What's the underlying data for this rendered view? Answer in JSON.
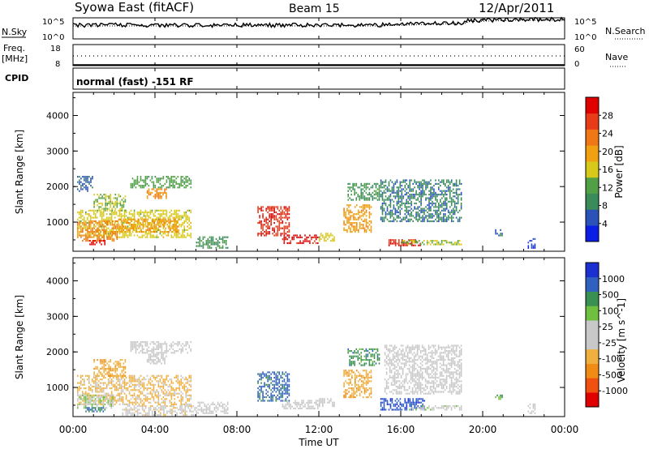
{
  "header": {
    "station": "Syowa East (fitACF)",
    "beam": "Beam 15",
    "date": "12/Apr/2011"
  },
  "sky_panel": {
    "left_label": "N.Sky",
    "right_label": "N.Search",
    "left_ticks": [
      "10^5",
      "10^0"
    ],
    "right_ticks": [
      "10^5",
      "10^0"
    ]
  },
  "freq_panel": {
    "left_label_line1": "Freq.",
    "left_label_line2": "[MHz]",
    "right_label": "Nave",
    "left_ticks": [
      "18",
      "8"
    ],
    "right_ticks": [
      "60",
      "0"
    ]
  },
  "cpid_panel": {
    "label": "CPID",
    "program": "normal (fast) -151 RF"
  },
  "time_axis": {
    "label": "Time UT",
    "ticks": [
      "00:00",
      "04:00",
      "08:00",
      "12:00",
      "16:00",
      "20:00",
      "00:00"
    ]
  },
  "colors": {
    "power": [
      "#0a1ee6",
      "#2a52b8",
      "#3a8a5a",
      "#52a046",
      "#d8c81a",
      "#f0a010",
      "#f07814",
      "#e83c18",
      "#e00000"
    ],
    "velocity": [
      "#e00000",
      "#f05010",
      "#f08c14",
      "#f0b040",
      "#c8c8c8",
      "#c8c8c8",
      "#70c040",
      "#3a9050",
      "#3060c0",
      "#1a30d0"
    ]
  },
  "chart_data": [
    {
      "type": "heatmap",
      "quantity": "power",
      "xlabel": "Time UT",
      "ylabel": "Slant Range [km]",
      "y_ticks": [
        "1000",
        "2000",
        "3000",
        "4000"
      ],
      "ylim": [
        180,
        4650
      ],
      "xlim_hours": [
        0,
        24
      ],
      "colorbar": {
        "label": "Power [dB]",
        "ticks": [
          "4",
          "8",
          "12",
          "16",
          "20",
          "24",
          "28"
        ],
        "range": [
          0,
          32
        ]
      },
      "regions": [
        {
          "t": [
            0.2,
            5.8
          ],
          "r": [
            550,
            1350
          ],
          "v": 16
        },
        {
          "t": [
            0.2,
            2.2
          ],
          "r": [
            450,
            1050
          ],
          "v": 22
        },
        {
          "t": [
            0.8,
            1.6
          ],
          "r": [
            350,
            500
          ],
          "v": 30
        },
        {
          "t": [
            1.0,
            2.6
          ],
          "r": [
            1300,
            1800
          ],
          "v": 14
        },
        {
          "t": [
            2.8,
            5.8
          ],
          "r": [
            1950,
            2300
          ],
          "v": 12
        },
        {
          "t": [
            3.6,
            4.6
          ],
          "r": [
            1650,
            1950
          ],
          "v": 22
        },
        {
          "t": [
            0.2,
            1.0
          ],
          "r": [
            1850,
            2300
          ],
          "v": 6
        },
        {
          "t": [
            2.2,
            5.2
          ],
          "r": [
            700,
            1100
          ],
          "v": 20
        },
        {
          "t": [
            6.0,
            7.6
          ],
          "r": [
            250,
            600
          ],
          "v": 10
        },
        {
          "t": [
            9.0,
            10.6
          ],
          "r": [
            600,
            1450
          ],
          "v": 28
        },
        {
          "t": [
            10.2,
            12.0
          ],
          "r": [
            380,
            650
          ],
          "v": 30
        },
        {
          "t": [
            12.0,
            12.8
          ],
          "r": [
            450,
            700
          ],
          "v": 16
        },
        {
          "t": [
            13.2,
            14.6
          ],
          "r": [
            700,
            1500
          ],
          "v": 20
        },
        {
          "t": [
            13.4,
            15.0
          ],
          "r": [
            1600,
            2100
          ],
          "v": 10
        },
        {
          "t": [
            15.4,
            17.0
          ],
          "r": [
            320,
            520
          ],
          "v": 28
        },
        {
          "t": [
            15.0,
            19.0
          ],
          "r": [
            1000,
            2200
          ],
          "v": 8
        },
        {
          "t": [
            16.0,
            19.0
          ],
          "r": [
            350,
            500
          ],
          "v": 14
        },
        {
          "t": [
            20.6,
            21.0
          ],
          "r": [
            600,
            800
          ],
          "v": 6
        },
        {
          "t": [
            22.2,
            22.6
          ],
          "r": [
            250,
            550
          ],
          "v": 4
        }
      ]
    },
    {
      "type": "heatmap",
      "quantity": "velocity",
      "xlabel": "Time UT",
      "ylabel": "Slant Range [km]",
      "y_ticks": [
        "1000",
        "2000",
        "3000",
        "4000"
      ],
      "ylim": [
        180,
        4650
      ],
      "xlim_hours": [
        0,
        24
      ],
      "colorbar": {
        "label": "Velocity [m s^-1]",
        "ticks": [
          "-1000",
          "-500",
          "-100",
          "-25",
          "25",
          "100",
          "500",
          "1000"
        ],
        "range": [
          -1200,
          1200
        ]
      },
      "regions": [
        {
          "t": [
            0.2,
            5.8
          ],
          "r": [
            500,
            1350
          ],
          "v": -300
        },
        {
          "t": [
            0.2,
            2.0
          ],
          "r": [
            400,
            800
          ],
          "v": 200
        },
        {
          "t": [
            0.6,
            1.6
          ],
          "r": [
            300,
            450
          ],
          "v": 700
        },
        {
          "t": [
            2.8,
            5.8
          ],
          "r": [
            1950,
            2300
          ],
          "v": 0
        },
        {
          "t": [
            3.6,
            4.6
          ],
          "r": [
            1650,
            1950
          ],
          "v": -60
        },
        {
          "t": [
            1.0,
            2.6
          ],
          "r": [
            1300,
            1800
          ],
          "v": -400
        },
        {
          "t": [
            2.4,
            6.0
          ],
          "r": [
            200,
            500
          ],
          "v": -150
        },
        {
          "t": [
            6.0,
            7.6
          ],
          "r": [
            250,
            600
          ],
          "v": -80
        },
        {
          "t": [
            9.0,
            10.6
          ],
          "r": [
            600,
            1450
          ],
          "v": 800
        },
        {
          "t": [
            10.2,
            12.0
          ],
          "r": [
            380,
            650
          ],
          "v": 0
        },
        {
          "t": [
            12.0,
            12.8
          ],
          "r": [
            450,
            700
          ],
          "v": -60
        },
        {
          "t": [
            13.2,
            14.6
          ],
          "r": [
            700,
            1500
          ],
          "v": -400
        },
        {
          "t": [
            13.4,
            15.0
          ],
          "r": [
            1600,
            2100
          ],
          "v": 600
        },
        {
          "t": [
            15.0,
            17.2
          ],
          "r": [
            350,
            700
          ],
          "v": 900
        },
        {
          "t": [
            15.2,
            19.0
          ],
          "r": [
            800,
            2200
          ],
          "v": 50
        },
        {
          "t": [
            16.4,
            19.0
          ],
          "r": [
            350,
            500
          ],
          "v": 150
        },
        {
          "t": [
            20.6,
            21.0
          ],
          "r": [
            600,
            800
          ],
          "v": 400
        },
        {
          "t": [
            22.2,
            22.6
          ],
          "r": [
            250,
            550
          ],
          "v": 0
        }
      ]
    }
  ]
}
